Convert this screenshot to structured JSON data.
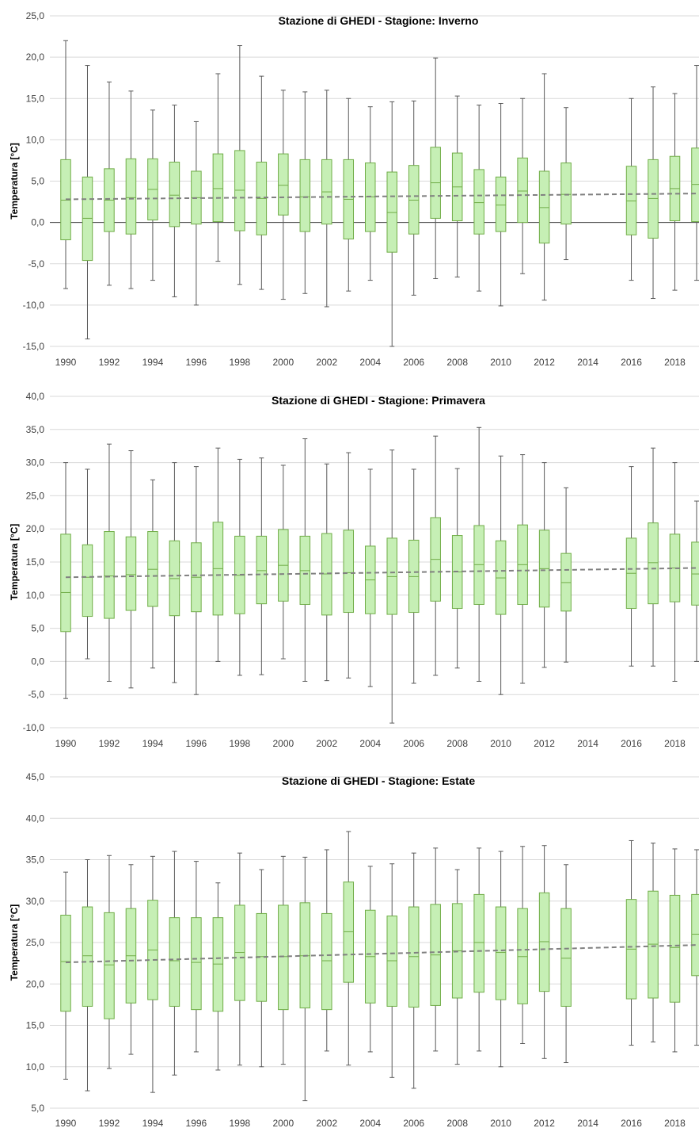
{
  "chart_data": [
    {
      "type": "box",
      "title": "Stazione di GHEDI - Stagione: Inverno",
      "ylabel": "Temperatura [°C]",
      "xlabel": "",
      "ylim": [
        -15,
        25
      ],
      "ystep": 5,
      "yticks": [
        "-15,0",
        "-10,0",
        "-5,0",
        "0,0",
        "5,0",
        "10,0",
        "15,0",
        "20,0",
        "25,0"
      ],
      "xticks": [
        "1990",
        "1992",
        "1994",
        "1996",
        "1998",
        "2000",
        "2002",
        "2004",
        "2006",
        "2008",
        "2010",
        "2012",
        "2014",
        "2016",
        "2018"
      ],
      "zero_line": true,
      "trend": [
        2.8,
        3.5
      ],
      "boxes": [
        {
          "year": 1990,
          "min": -8.0,
          "q1": -2.1,
          "median": 2.7,
          "q3": 7.6,
          "max": 22.0
        },
        {
          "year": 1991,
          "min": -14.1,
          "q1": -4.6,
          "median": 0.5,
          "q3": 5.5,
          "max": 19.0
        },
        {
          "year": 1992,
          "min": -7.6,
          "q1": -1.1,
          "median": 2.7,
          "q3": 6.5,
          "max": 17.0
        },
        {
          "year": 1993,
          "min": -8.0,
          "q1": -1.4,
          "median": 3.0,
          "q3": 7.7,
          "max": 15.9
        },
        {
          "year": 1994,
          "min": -7.0,
          "q1": 0.3,
          "median": 4.0,
          "q3": 7.7,
          "max": 13.6
        },
        {
          "year": 1995,
          "min": -9.0,
          "q1": -0.5,
          "median": 3.3,
          "q3": 7.3,
          "max": 14.2
        },
        {
          "year": 1996,
          "min": -10.0,
          "q1": -0.2,
          "median": 3.0,
          "q3": 6.2,
          "max": 12.2
        },
        {
          "year": 1997,
          "min": -4.7,
          "q1": 0.1,
          "median": 4.1,
          "q3": 8.3,
          "max": 18.0
        },
        {
          "year": 1998,
          "min": -7.5,
          "q1": -1.0,
          "median": 3.9,
          "q3": 8.7,
          "max": 21.4
        },
        {
          "year": 1999,
          "min": -8.1,
          "q1": -1.5,
          "median": 2.9,
          "q3": 7.3,
          "max": 17.7
        },
        {
          "year": 2000,
          "min": -9.3,
          "q1": 0.9,
          "median": 4.5,
          "q3": 8.3,
          "max": 16.0
        },
        {
          "year": 2001,
          "min": -8.6,
          "q1": -1.1,
          "median": 3.1,
          "q3": 7.6,
          "max": 15.8
        },
        {
          "year": 2002,
          "min": -10.2,
          "q1": -0.2,
          "median": 3.7,
          "q3": 7.6,
          "max": 16.0
        },
        {
          "year": 2003,
          "min": -8.3,
          "q1": -2.0,
          "median": 2.8,
          "q3": 7.6,
          "max": 15.0
        },
        {
          "year": 2004,
          "min": -7.0,
          "q1": -1.1,
          "median": 3.1,
          "q3": 7.2,
          "max": 14.0
        },
        {
          "year": 2005,
          "min": -15.0,
          "q1": -3.6,
          "median": 1.2,
          "q3": 6.1,
          "max": 14.6
        },
        {
          "year": 2006,
          "min": -8.8,
          "q1": -1.4,
          "median": 2.7,
          "q3": 6.9,
          "max": 14.7
        },
        {
          "year": 2007,
          "min": -6.8,
          "q1": 0.5,
          "median": 4.8,
          "q3": 9.1,
          "max": 19.9
        },
        {
          "year": 2008,
          "min": -6.6,
          "q1": 0.2,
          "median": 4.3,
          "q3": 8.4,
          "max": 15.3
        },
        {
          "year": 2009,
          "min": -8.3,
          "q1": -1.4,
          "median": 2.4,
          "q3": 6.4,
          "max": 14.2
        },
        {
          "year": 2010,
          "min": -10.1,
          "q1": -1.1,
          "median": 2.1,
          "q3": 5.5,
          "max": 14.4
        },
        {
          "year": 2011,
          "min": -6.2,
          "q1": 0.0,
          "median": 3.8,
          "q3": 7.8,
          "max": 15.0
        },
        {
          "year": 2012,
          "min": -9.4,
          "q1": -2.5,
          "median": 1.8,
          "q3": 6.2,
          "max": 18.0
        },
        {
          "year": 2013,
          "min": -4.5,
          "q1": -0.2,
          "median": 3.4,
          "q3": 7.2,
          "max": 13.9
        },
        {
          "year": 2016,
          "min": -7.0,
          "q1": -1.5,
          "median": 2.6,
          "q3": 6.8,
          "max": 15.0
        },
        {
          "year": 2017,
          "min": -9.2,
          "q1": -1.9,
          "median": 2.9,
          "q3": 7.6,
          "max": 16.4
        },
        {
          "year": 2018,
          "min": -8.2,
          "q1": 0.2,
          "median": 4.1,
          "q3": 8.0,
          "max": 15.6
        },
        {
          "year": 2019,
          "min": -7.0,
          "q1": 0.1,
          "median": 4.6,
          "q3": 9.0,
          "max": 19.0
        }
      ]
    },
    {
      "type": "box",
      "title": "Stazione di GHEDI - Stagione: Primavera",
      "ylabel": "Temperatura [°C]",
      "xlabel": "",
      "ylim": [
        -10,
        40
      ],
      "ystep": 5,
      "yticks": [
        "-10,0",
        "-5,0",
        "0,0",
        "5,0",
        "10,0",
        "15,0",
        "20,0",
        "25,0",
        "30,0",
        "35,0",
        "40,0"
      ],
      "xticks": [
        "1990",
        "1992",
        "1994",
        "1996",
        "1998",
        "2000",
        "2002",
        "2004",
        "2006",
        "2008",
        "2010",
        "2012",
        "2014",
        "2016",
        "2018"
      ],
      "zero_line": false,
      "trend": [
        12.7,
        14.1
      ],
      "boxes": [
        {
          "year": 1990,
          "min": -5.6,
          "q1": 4.5,
          "median": 10.4,
          "q3": 19.2,
          "max": 30.0
        },
        {
          "year": 1991,
          "min": 0.4,
          "q1": 6.8,
          "median": 12.7,
          "q3": 17.6,
          "max": 29.0
        },
        {
          "year": 1992,
          "min": -3.0,
          "q1": 6.5,
          "median": 12.9,
          "q3": 19.6,
          "max": 32.8
        },
        {
          "year": 1993,
          "min": -4.0,
          "q1": 7.7,
          "median": 13.1,
          "q3": 18.8,
          "max": 31.8
        },
        {
          "year": 1994,
          "min": -1.0,
          "q1": 8.3,
          "median": 13.9,
          "q3": 19.6,
          "max": 27.4
        },
        {
          "year": 1995,
          "min": -3.2,
          "q1": 6.9,
          "median": 12.5,
          "q3": 18.2,
          "max": 30.0
        },
        {
          "year": 1996,
          "min": -5.0,
          "q1": 7.5,
          "median": 12.7,
          "q3": 17.9,
          "max": 29.4
        },
        {
          "year": 1997,
          "min": 0.0,
          "q1": 7.0,
          "median": 14.0,
          "q3": 21.0,
          "max": 32.2
        },
        {
          "year": 1998,
          "min": -2.1,
          "q1": 7.2,
          "median": 13.0,
          "q3": 18.9,
          "max": 30.5
        },
        {
          "year": 1999,
          "min": -2.0,
          "q1": 8.7,
          "median": 13.7,
          "q3": 18.9,
          "max": 30.7
        },
        {
          "year": 2000,
          "min": 0.4,
          "q1": 9.1,
          "median": 14.5,
          "q3": 19.9,
          "max": 29.6
        },
        {
          "year": 2001,
          "min": -3.0,
          "q1": 8.6,
          "median": 13.7,
          "q3": 18.9,
          "max": 33.6
        },
        {
          "year": 2002,
          "min": -2.9,
          "q1": 7.0,
          "median": 13.2,
          "q3": 19.3,
          "max": 29.8
        },
        {
          "year": 2003,
          "min": -2.5,
          "q1": 7.4,
          "median": 13.4,
          "q3": 19.8,
          "max": 31.5
        },
        {
          "year": 2004,
          "min": -3.8,
          "q1": 7.2,
          "median": 12.3,
          "q3": 17.4,
          "max": 29.0
        },
        {
          "year": 2005,
          "min": -9.3,
          "q1": 7.1,
          "median": 12.8,
          "q3": 18.6,
          "max": 31.9
        },
        {
          "year": 2006,
          "min": -3.3,
          "q1": 7.4,
          "median": 12.8,
          "q3": 18.3,
          "max": 29.0
        },
        {
          "year": 2007,
          "min": -2.1,
          "q1": 9.1,
          "median": 15.4,
          "q3": 21.7,
          "max": 34.0
        },
        {
          "year": 2008,
          "min": -1.0,
          "q1": 8.0,
          "median": 13.5,
          "q3": 19.0,
          "max": 29.1
        },
        {
          "year": 2009,
          "min": -3.0,
          "q1": 8.6,
          "median": 14.6,
          "q3": 20.5,
          "max": 35.3
        },
        {
          "year": 2010,
          "min": -5.0,
          "q1": 7.1,
          "median": 12.6,
          "q3": 18.2,
          "max": 31.0
        },
        {
          "year": 2011,
          "min": -3.3,
          "q1": 8.6,
          "median": 14.6,
          "q3": 20.6,
          "max": 31.2
        },
        {
          "year": 2012,
          "min": -0.9,
          "q1": 8.2,
          "median": 14.0,
          "q3": 19.8,
          "max": 30.0
        },
        {
          "year": 2013,
          "min": -0.1,
          "q1": 7.6,
          "median": 11.9,
          "q3": 16.3,
          "max": 26.2
        },
        {
          "year": 2016,
          "min": -0.7,
          "q1": 8.0,
          "median": 13.3,
          "q3": 18.6,
          "max": 29.4
        },
        {
          "year": 2017,
          "min": -0.7,
          "q1": 8.7,
          "median": 14.9,
          "q3": 20.9,
          "max": 32.2
        },
        {
          "year": 2018,
          "min": -3.0,
          "q1": 9.0,
          "median": 14.1,
          "q3": 19.2,
          "max": 30.0
        },
        {
          "year": 2019,
          "min": 0.0,
          "q1": 8.5,
          "median": 13.2,
          "q3": 18.0,
          "max": 24.2
        }
      ]
    },
    {
      "type": "box",
      "title": "Stazione di GHEDI - Stagione: Estate",
      "ylabel": "Temperatura [°C]",
      "xlabel": "",
      "ylim": [
        5,
        45
      ],
      "ystep": 5,
      "yticks": [
        "5,0",
        "10,0",
        "15,0",
        "20,0",
        "25,0",
        "30,0",
        "35,0",
        "40,0",
        "45,0"
      ],
      "xticks": [
        "1990",
        "1992",
        "1994",
        "1996",
        "1998",
        "2000",
        "2002",
        "2004",
        "2006",
        "2008",
        "2010",
        "2012",
        "2014",
        "2016",
        "2018"
      ],
      "zero_line": false,
      "trend": [
        22.6,
        24.7
      ],
      "boxes": [
        {
          "year": 1990,
          "min": 8.5,
          "q1": 16.7,
          "median": 22.7,
          "q3": 28.3,
          "max": 33.5
        },
        {
          "year": 1991,
          "min": 7.1,
          "q1": 17.3,
          "median": 23.4,
          "q3": 29.3,
          "max": 35.0
        },
        {
          "year": 1992,
          "min": 9.8,
          "q1": 15.8,
          "median": 22.3,
          "q3": 28.6,
          "max": 35.5
        },
        {
          "year": 1993,
          "min": 11.5,
          "q1": 17.7,
          "median": 23.4,
          "q3": 29.1,
          "max": 34.4
        },
        {
          "year": 1994,
          "min": 6.9,
          "q1": 18.1,
          "median": 24.1,
          "q3": 30.1,
          "max": 35.4
        },
        {
          "year": 1995,
          "min": 9.0,
          "q1": 17.3,
          "median": 22.8,
          "q3": 28.0,
          "max": 36.0
        },
        {
          "year": 1996,
          "min": 11.8,
          "q1": 16.9,
          "median": 22.6,
          "q3": 28.0,
          "max": 34.8
        },
        {
          "year": 1997,
          "min": 9.6,
          "q1": 16.7,
          "median": 22.4,
          "q3": 28.0,
          "max": 32.2
        },
        {
          "year": 1998,
          "min": 10.2,
          "q1": 18.0,
          "median": 23.8,
          "q3": 29.5,
          "max": 35.8
        },
        {
          "year": 1999,
          "min": 10.0,
          "q1": 17.9,
          "median": 23.3,
          "q3": 28.5,
          "max": 33.8
        },
        {
          "year": 2000,
          "min": 10.3,
          "q1": 16.9,
          "median": 23.3,
          "q3": 29.5,
          "max": 35.4
        },
        {
          "year": 2001,
          "min": 5.9,
          "q1": 17.1,
          "median": 23.4,
          "q3": 29.8,
          "max": 35.3
        },
        {
          "year": 2002,
          "min": 11.9,
          "q1": 16.9,
          "median": 22.8,
          "q3": 28.5,
          "max": 36.2
        },
        {
          "year": 2003,
          "min": 10.2,
          "q1": 20.2,
          "median": 26.3,
          "q3": 32.3,
          "max": 38.4
        },
        {
          "year": 2004,
          "min": 11.8,
          "q1": 17.7,
          "median": 23.3,
          "q3": 28.9,
          "max": 34.2
        },
        {
          "year": 2005,
          "min": 8.7,
          "q1": 17.3,
          "median": 22.8,
          "q3": 28.2,
          "max": 34.5
        },
        {
          "year": 2006,
          "min": 7.4,
          "q1": 17.2,
          "median": 23.3,
          "q3": 29.3,
          "max": 35.8
        },
        {
          "year": 2007,
          "min": 11.9,
          "q1": 17.4,
          "median": 23.5,
          "q3": 29.6,
          "max": 36.4
        },
        {
          "year": 2008,
          "min": 10.3,
          "q1": 18.3,
          "median": 24.0,
          "q3": 29.7,
          "max": 33.8
        },
        {
          "year": 2009,
          "min": 11.9,
          "q1": 19.0,
          "median": 25.0,
          "q3": 30.8,
          "max": 36.4
        },
        {
          "year": 2010,
          "min": 10.0,
          "q1": 18.1,
          "median": 23.8,
          "q3": 29.3,
          "max": 36.0
        },
        {
          "year": 2011,
          "min": 12.8,
          "q1": 17.6,
          "median": 23.3,
          "q3": 29.1,
          "max": 36.6
        },
        {
          "year": 2012,
          "min": 11.0,
          "q1": 19.1,
          "median": 25.1,
          "q3": 31.0,
          "max": 36.7
        },
        {
          "year": 2013,
          "min": 10.5,
          "q1": 17.3,
          "median": 23.1,
          "q3": 29.1,
          "max": 34.4
        },
        {
          "year": 2016,
          "min": 12.6,
          "q1": 18.2,
          "median": 24.2,
          "q3": 30.2,
          "max": 37.3
        },
        {
          "year": 2017,
          "min": 13.0,
          "q1": 18.3,
          "median": 24.8,
          "q3": 31.2,
          "max": 37.0
        },
        {
          "year": 2018,
          "min": 11.8,
          "q1": 17.8,
          "median": 24.4,
          "q3": 30.7,
          "max": 36.3
        },
        {
          "year": 2019,
          "min": 12.6,
          "q1": 21.0,
          "median": 26.0,
          "q3": 30.8,
          "max": 36.2
        }
      ]
    }
  ]
}
